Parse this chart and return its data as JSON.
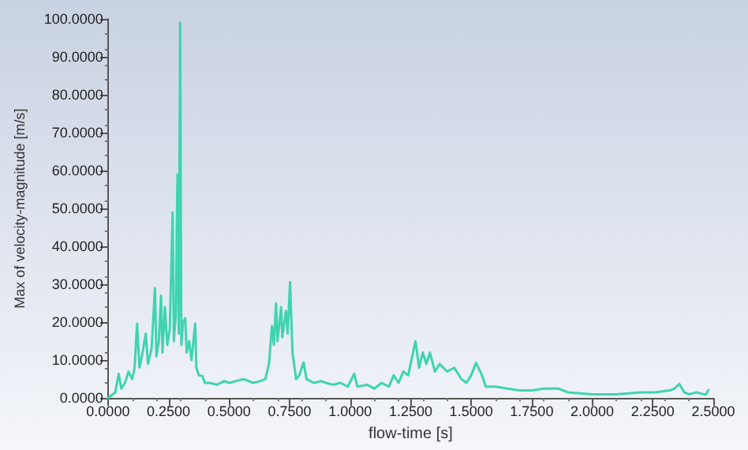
{
  "chart_data": {
    "type": "line",
    "xlabel": "flow-time [s]",
    "ylabel": "Max of velocity-magnitude [m/s]",
    "xlim": [
      0,
      2.5
    ],
    "xticks": [
      {
        "value": 0,
        "label": "0.0000"
      },
      {
        "value": 0.25,
        "label": "0.2500"
      },
      {
        "value": 0.5,
        "label": "0.5000"
      },
      {
        "value": 0.75,
        "label": "0.7500"
      },
      {
        "value": 1,
        "label": "1.0000"
      },
      {
        "value": 1.25,
        "label": "1.2500"
      },
      {
        "value": 1.5,
        "label": "1.5000"
      },
      {
        "value": 1.75,
        "label": "1.7500"
      },
      {
        "value": 2,
        "label": "2.0000"
      },
      {
        "value": 2.25,
        "label": "2.2500"
      },
      {
        "value": 2.5,
        "label": "2.5000"
      }
    ],
    "ylim": [
      0,
      100
    ],
    "yticks": [
      {
        "value": 0,
        "label": "0.0000"
      },
      {
        "value": 10,
        "label": "10.0000"
      },
      {
        "value": 20,
        "label": "20.0000"
      },
      {
        "value": 30,
        "label": "30.0000"
      },
      {
        "value": 40,
        "label": "40.0000"
      },
      {
        "value": 50,
        "label": "50.0000"
      },
      {
        "value": 60,
        "label": "60.0000"
      },
      {
        "value": 70,
        "label": "70.0000"
      },
      {
        "value": 80,
        "label": "80.0000"
      },
      {
        "value": 90,
        "label": "90.0000"
      },
      {
        "value": 100,
        "label": "100.0000"
      }
    ],
    "grid": false,
    "marker": "none",
    "line_style": "solid",
    "series": [
      {
        "color": "#3fd4b0",
        "x": [
          0,
          0.01,
          0.03,
          0.044,
          0.055,
          0.07,
          0.085,
          0.1,
          0.11,
          0.12,
          0.13,
          0.14,
          0.156,
          0.165,
          0.18,
          0.194,
          0.2,
          0.21,
          0.219,
          0.225,
          0.235,
          0.245,
          0.255,
          0.267,
          0.272,
          0.28,
          0.287,
          0.292,
          0.298,
          0.303,
          0.31,
          0.319,
          0.325,
          0.335,
          0.345,
          0.36,
          0.365,
          0.375,
          0.39,
          0.4,
          0.42,
          0.45,
          0.48,
          0.5,
          0.53,
          0.56,
          0.6,
          0.63,
          0.65,
          0.665,
          0.677,
          0.685,
          0.694,
          0.7,
          0.715,
          0.72,
          0.735,
          0.742,
          0.752,
          0.762,
          0.777,
          0.79,
          0.808,
          0.82,
          0.85,
          0.88,
          0.9,
          0.93,
          0.96,
          0.99,
          1.017,
          1.03,
          1.07,
          1.1,
          1.13,
          1.16,
          1.18,
          1.2,
          1.22,
          1.24,
          1.27,
          1.285,
          1.3,
          1.315,
          1.33,
          1.35,
          1.37,
          1.4,
          1.43,
          1.46,
          1.48,
          1.5,
          1.52,
          1.545,
          1.56,
          1.6,
          1.65,
          1.7,
          1.75,
          1.8,
          1.86,
          1.9,
          2.0,
          2.1,
          2.2,
          2.26,
          2.32,
          2.34,
          2.36,
          2.38,
          2.4,
          2.43,
          2.46,
          2.47,
          2.48
        ],
        "values": [
          0,
          0.5,
          1.5,
          6.4,
          2.5,
          4,
          7,
          5,
          8,
          19.6,
          8,
          11,
          17,
          9,
          13,
          29,
          11,
          15,
          27,
          12,
          24,
          14,
          18,
          49,
          15,
          22,
          59,
          17,
          99,
          14,
          20,
          21,
          12,
          15,
          10,
          19.6,
          8,
          6,
          5.8,
          4,
          4,
          3.5,
          4.5,
          4,
          4.5,
          5,
          4,
          4.5,
          5,
          9,
          19,
          14,
          25,
          15,
          24,
          16,
          23,
          17,
          30.6,
          12,
          5,
          6,
          9.4,
          5,
          4,
          4.5,
          4,
          3.5,
          4,
          3,
          6.4,
          3,
          3.5,
          2.5,
          4,
          3,
          6,
          4,
          7,
          6,
          15,
          8,
          12,
          9,
          12,
          7,
          9,
          7,
          8,
          5,
          4,
          6,
          9.3,
          6,
          3,
          3,
          2.5,
          2,
          2,
          2.5,
          2.5,
          1.5,
          1,
          1,
          1.5,
          1.5,
          2,
          2.5,
          3.7,
          1.5,
          1,
          1.5,
          1,
          1,
          2.1
        ]
      }
    ]
  }
}
